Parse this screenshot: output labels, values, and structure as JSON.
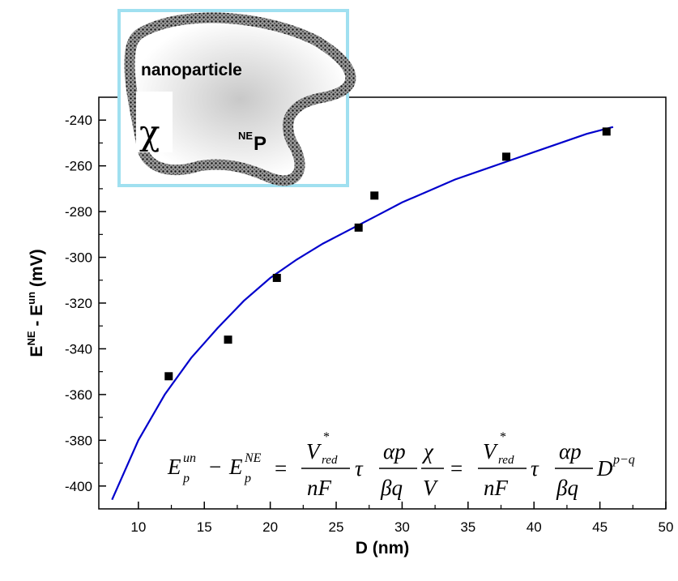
{
  "chart_data": {
    "type": "scatter",
    "title": "",
    "xlabel": "D (nm)",
    "ylabel_parts": {
      "e1": "E",
      "sup1": "NE",
      "mid": " - E",
      "sup2": "un",
      "unit": " (mV)"
    },
    "xlim": [
      7,
      50
    ],
    "ylim": [
      -410,
      -230
    ],
    "xticks": [
      10,
      15,
      20,
      25,
      30,
      35,
      40,
      45,
      50
    ],
    "yticks": [
      -400,
      -380,
      -360,
      -340,
      -320,
      -300,
      -280,
      -260,
      -240
    ],
    "grid": false,
    "legend": "none",
    "series": [
      {
        "kind": "markers",
        "x": [
          12.3,
          16.8,
          20.5,
          26.7,
          27.9,
          37.9,
          45.5
        ],
        "y": [
          -352,
          -336,
          -309,
          -287,
          -273,
          -256,
          -245
        ]
      },
      {
        "kind": "fit-line",
        "x": [
          8,
          10,
          12,
          14,
          16,
          18,
          20,
          22,
          24,
          26,
          28,
          30,
          32,
          34,
          36,
          38,
          40,
          42,
          44,
          46
        ],
        "y": [
          -406,
          -380,
          -360,
          -344,
          -331,
          -319,
          -309,
          -301,
          -294,
          -288,
          -282,
          -276,
          -271,
          -266,
          -262,
          -258,
          -254,
          -250,
          -246,
          -243
        ]
      }
    ],
    "marker_color": "#000000",
    "line_color": "#0000cc"
  },
  "inset": {
    "label_nanoparticle": "nanoparticle",
    "label_chi": "χ",
    "label_ne_sup": "NE",
    "label_p": "P",
    "frame_color": "#a0e0f0"
  },
  "equation": {
    "e": "E",
    "p": "p",
    "un": "un",
    "minus": "−",
    "ne": "NE",
    "eq": "=",
    "v": "V",
    "star": "*",
    "red": "red",
    "nf": "nF",
    "tau": "τ",
    "alpha_p": "αp",
    "beta_q": "βq",
    "chi": "χ",
    "d": "D",
    "exp": "p−q"
  }
}
